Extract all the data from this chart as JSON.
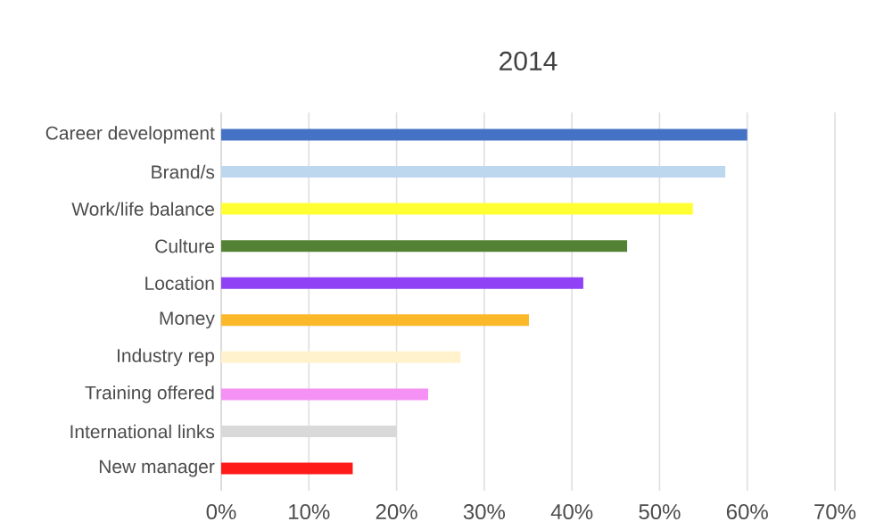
{
  "chart_data": {
    "type": "bar",
    "orientation": "horizontal",
    "title": "2014",
    "categories": [
      "Career development",
      "Brand/s",
      "Work/life balance",
      "Culture",
      "Location",
      "Money",
      "Industry rep",
      "Training offered",
      "International links",
      "New manager"
    ],
    "values": [
      60,
      57.5,
      53.8,
      46.3,
      41.3,
      35.1,
      27.3,
      23.6,
      20,
      15
    ],
    "colors": [
      "#4472c4",
      "#bdd7ee",
      "#ffff33",
      "#548235",
      "#9040f5",
      "#fbb829",
      "#fff2cc",
      "#f590f5",
      "#d9d9d9",
      "#ff1a1a"
    ],
    "xlim": [
      0,
      70
    ],
    "xticks": [
      {
        "value": 0,
        "label": "0%"
      },
      {
        "value": 10,
        "label": "10%"
      },
      {
        "value": 20,
        "label": "20%"
      },
      {
        "value": 30,
        "label": "30%"
      },
      {
        "value": 40,
        "label": "40%"
      },
      {
        "value": 50,
        "label": "50%"
      },
      {
        "value": 60,
        "label": "60%"
      },
      {
        "value": 70,
        "label": "70%"
      }
    ],
    "grid": "x"
  }
}
